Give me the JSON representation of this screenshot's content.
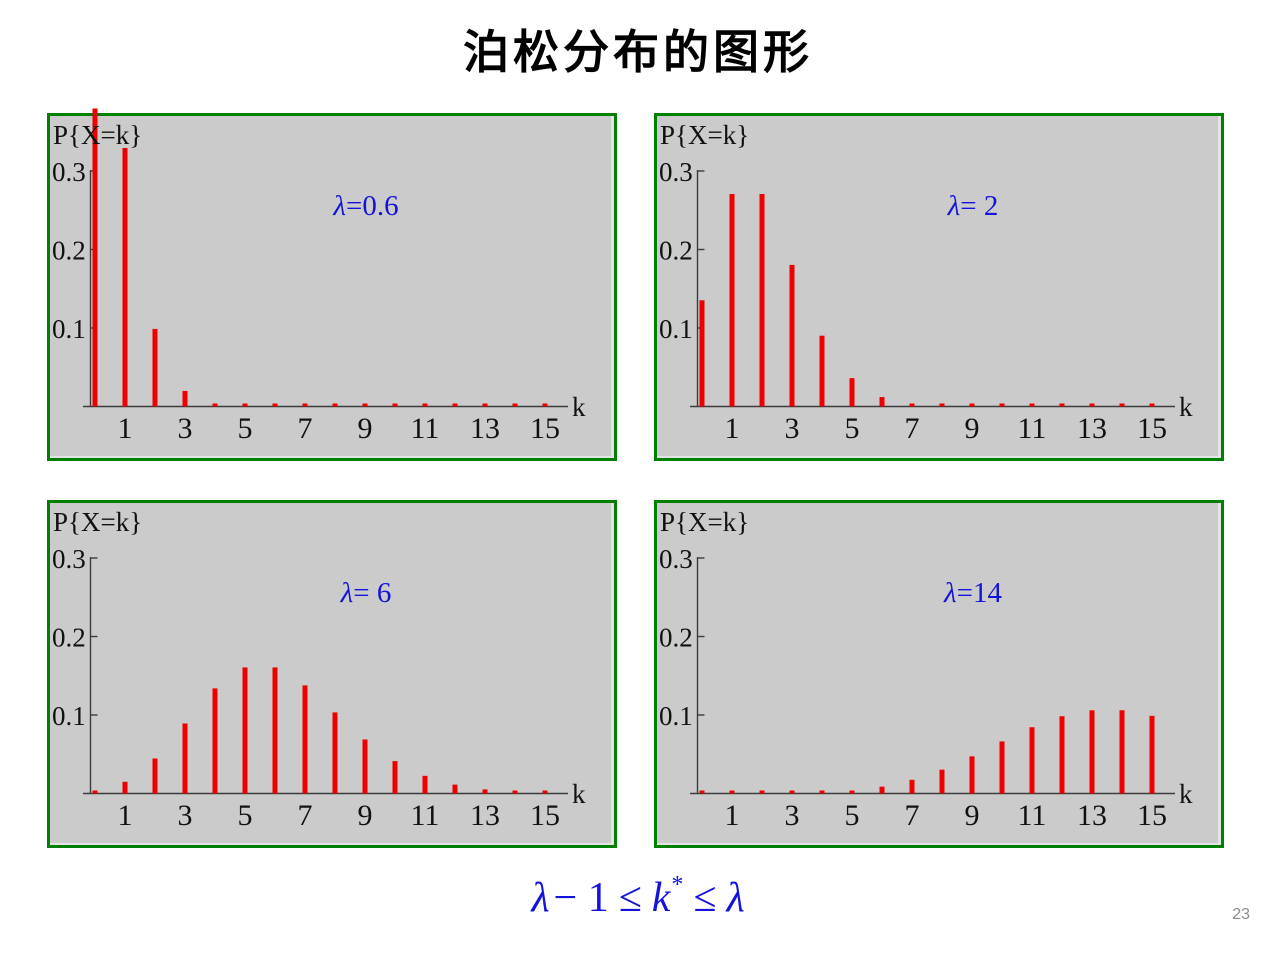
{
  "slide": {
    "title": "泊松分布的图形",
    "page_number": "23",
    "formula": {
      "text": "λ − 1 ≤ k* ≤ λ",
      "lambda1": "λ",
      "minus_one": "− 1",
      "leq1": "≤",
      "k": "k",
      "star": "*",
      "leq2": "≤",
      "lambda2": "λ"
    }
  },
  "colors": {
    "bar": "#ee0000",
    "annotation_blue": "#1313db",
    "panel_border": "#008000",
    "panel_background": "#cbcbcb",
    "axis": "#3c3c3c",
    "tick_label": "#111111",
    "title": "#000000",
    "page_number_gray": "#8c8c8c"
  },
  "chart_data": [
    {
      "type": "stem",
      "title": "λ=0.6",
      "lambda": 0.6,
      "lambda_label": {
        "symbol": "λ",
        "value": "=0.6"
      },
      "y_axis_title": "P{X=k}",
      "x_axis_label": "k",
      "ylim": [
        0,
        0.3
      ],
      "x_range": [
        0,
        15
      ],
      "grid": false,
      "note": "k=0 stem (0.5488) is clipped above the 0.3 axis limit",
      "y_ticks": [
        {
          "v": 0.1,
          "label": "0.1"
        },
        {
          "v": 0.2,
          "label": "0.2"
        },
        {
          "v": 0.3,
          "label": "0.3"
        }
      ],
      "x_tick_labels": [
        {
          "v": 1,
          "label": "1"
        },
        {
          "v": 3,
          "label": "3"
        },
        {
          "v": 5,
          "label": "5"
        },
        {
          "v": 7,
          "label": "7"
        },
        {
          "v": 9,
          "label": "9"
        },
        {
          "v": 11,
          "label": "11"
        },
        {
          "v": 13,
          "label": "13"
        },
        {
          "v": 15,
          "label": "15"
        }
      ],
      "x": [
        0,
        1,
        2,
        3,
        4,
        5,
        6,
        7,
        8,
        9,
        10,
        11,
        12,
        13,
        14,
        15
      ],
      "values": [
        0.5488,
        0.3293,
        0.0988,
        0.0198,
        0.003,
        0.0004,
        0.0,
        0.0,
        0.0,
        0.0,
        0.0,
        0.0,
        0.0,
        0.0,
        0.0,
        0.0
      ]
    },
    {
      "type": "stem",
      "title": "λ= 2",
      "lambda": 2,
      "lambda_label": {
        "symbol": "λ",
        "value": "= 2"
      },
      "y_axis_title": "P{X=k}",
      "x_axis_label": "k",
      "ylim": [
        0,
        0.3
      ],
      "x_range": [
        0,
        15
      ],
      "grid": false,
      "y_ticks": [
        {
          "v": 0.1,
          "label": "0.1"
        },
        {
          "v": 0.2,
          "label": "0.2"
        },
        {
          "v": 0.3,
          "label": "0.3"
        }
      ],
      "x_tick_labels": [
        {
          "v": 1,
          "label": "1"
        },
        {
          "v": 3,
          "label": "3"
        },
        {
          "v": 5,
          "label": "5"
        },
        {
          "v": 7,
          "label": "7"
        },
        {
          "v": 9,
          "label": "9"
        },
        {
          "v": 11,
          "label": "11"
        },
        {
          "v": 13,
          "label": "13"
        },
        {
          "v": 15,
          "label": "15"
        }
      ],
      "x": [
        0,
        1,
        2,
        3,
        4,
        5,
        6,
        7,
        8,
        9,
        10,
        11,
        12,
        13,
        14,
        15
      ],
      "values": [
        0.1353,
        0.2707,
        0.2707,
        0.1804,
        0.0902,
        0.0361,
        0.012,
        0.0034,
        0.0009,
        0.0002,
        0.0,
        0.0,
        0.0,
        0.0,
        0.0,
        0.0
      ]
    },
    {
      "type": "stem",
      "title": "λ= 6",
      "lambda": 6,
      "lambda_label": {
        "symbol": "λ",
        "value": "= 6"
      },
      "y_axis_title": "P{X=k}",
      "x_axis_label": "k",
      "ylim": [
        0,
        0.3
      ],
      "x_range": [
        0,
        15
      ],
      "grid": false,
      "y_ticks": [
        {
          "v": 0.1,
          "label": "0.1"
        },
        {
          "v": 0.2,
          "label": "0.2"
        },
        {
          "v": 0.3,
          "label": "0.3"
        }
      ],
      "x_tick_labels": [
        {
          "v": 1,
          "label": "1"
        },
        {
          "v": 3,
          "label": "3"
        },
        {
          "v": 5,
          "label": "5"
        },
        {
          "v": 7,
          "label": "7"
        },
        {
          "v": 9,
          "label": "9"
        },
        {
          "v": 11,
          "label": "11"
        },
        {
          "v": 13,
          "label": "13"
        },
        {
          "v": 15,
          "label": "15"
        }
      ],
      "x": [
        0,
        1,
        2,
        3,
        4,
        5,
        6,
        7,
        8,
        9,
        10,
        11,
        12,
        13,
        14,
        15
      ],
      "values": [
        0.0025,
        0.0149,
        0.0446,
        0.0892,
        0.1339,
        0.1606,
        0.1606,
        0.1377,
        0.1033,
        0.0688,
        0.0413,
        0.0225,
        0.0113,
        0.0052,
        0.0022,
        0.0009
      ]
    },
    {
      "type": "stem",
      "title": "λ=14",
      "lambda": 14,
      "lambda_label": {
        "symbol": "λ",
        "value": "=14"
      },
      "y_axis_title": "P{X=k}",
      "x_axis_label": "k",
      "ylim": [
        0,
        0.3
      ],
      "x_range": [
        0,
        15
      ],
      "grid": false,
      "y_ticks": [
        {
          "v": 0.1,
          "label": "0.1"
        },
        {
          "v": 0.2,
          "label": "0.2"
        },
        {
          "v": 0.3,
          "label": "0.3"
        }
      ],
      "x_tick_labels": [
        {
          "v": 1,
          "label": "1"
        },
        {
          "v": 3,
          "label": "3"
        },
        {
          "v": 5,
          "label": "5"
        },
        {
          "v": 7,
          "label": "7"
        },
        {
          "v": 9,
          "label": "9"
        },
        {
          "v": 11,
          "label": "11"
        },
        {
          "v": 13,
          "label": "13"
        },
        {
          "v": 15,
          "label": "15"
        }
      ],
      "x": [
        0,
        1,
        2,
        3,
        4,
        5,
        6,
        7,
        8,
        9,
        10,
        11,
        12,
        13,
        14,
        15
      ],
      "values": [
        0.0,
        0.0,
        0.0001,
        0.0004,
        0.0013,
        0.0037,
        0.0087,
        0.0174,
        0.0304,
        0.0473,
        0.0663,
        0.0844,
        0.0984,
        0.106,
        0.106,
        0.0989
      ]
    }
  ]
}
